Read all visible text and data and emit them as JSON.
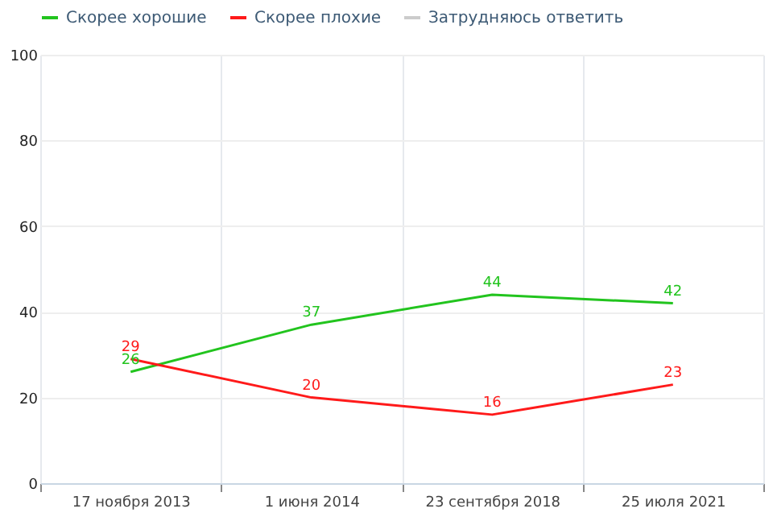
{
  "chart_data": {
    "type": "line",
    "categories": [
      "17 ноября 2013",
      "1 июня 2014",
      "23 сентября 2018",
      "25 июля 2021"
    ],
    "series": [
      {
        "name": "Скорее хорошие",
        "color": "#22c41e",
        "values": [
          26,
          37,
          44,
          42
        ]
      },
      {
        "name": "Скорее плохие",
        "color": "#ff1a1a",
        "values": [
          29,
          20,
          16,
          23
        ]
      },
      {
        "name": "Затрудняюсь ответить",
        "color": "#cccccc",
        "values": [
          null,
          null,
          null,
          null
        ]
      }
    ],
    "ylim": [
      0,
      100
    ],
    "yticks": [
      0,
      20,
      40,
      60,
      80,
      100
    ],
    "grid": true,
    "legend": "top",
    "data_labels": true,
    "marker": "none",
    "line_style": "solid"
  }
}
